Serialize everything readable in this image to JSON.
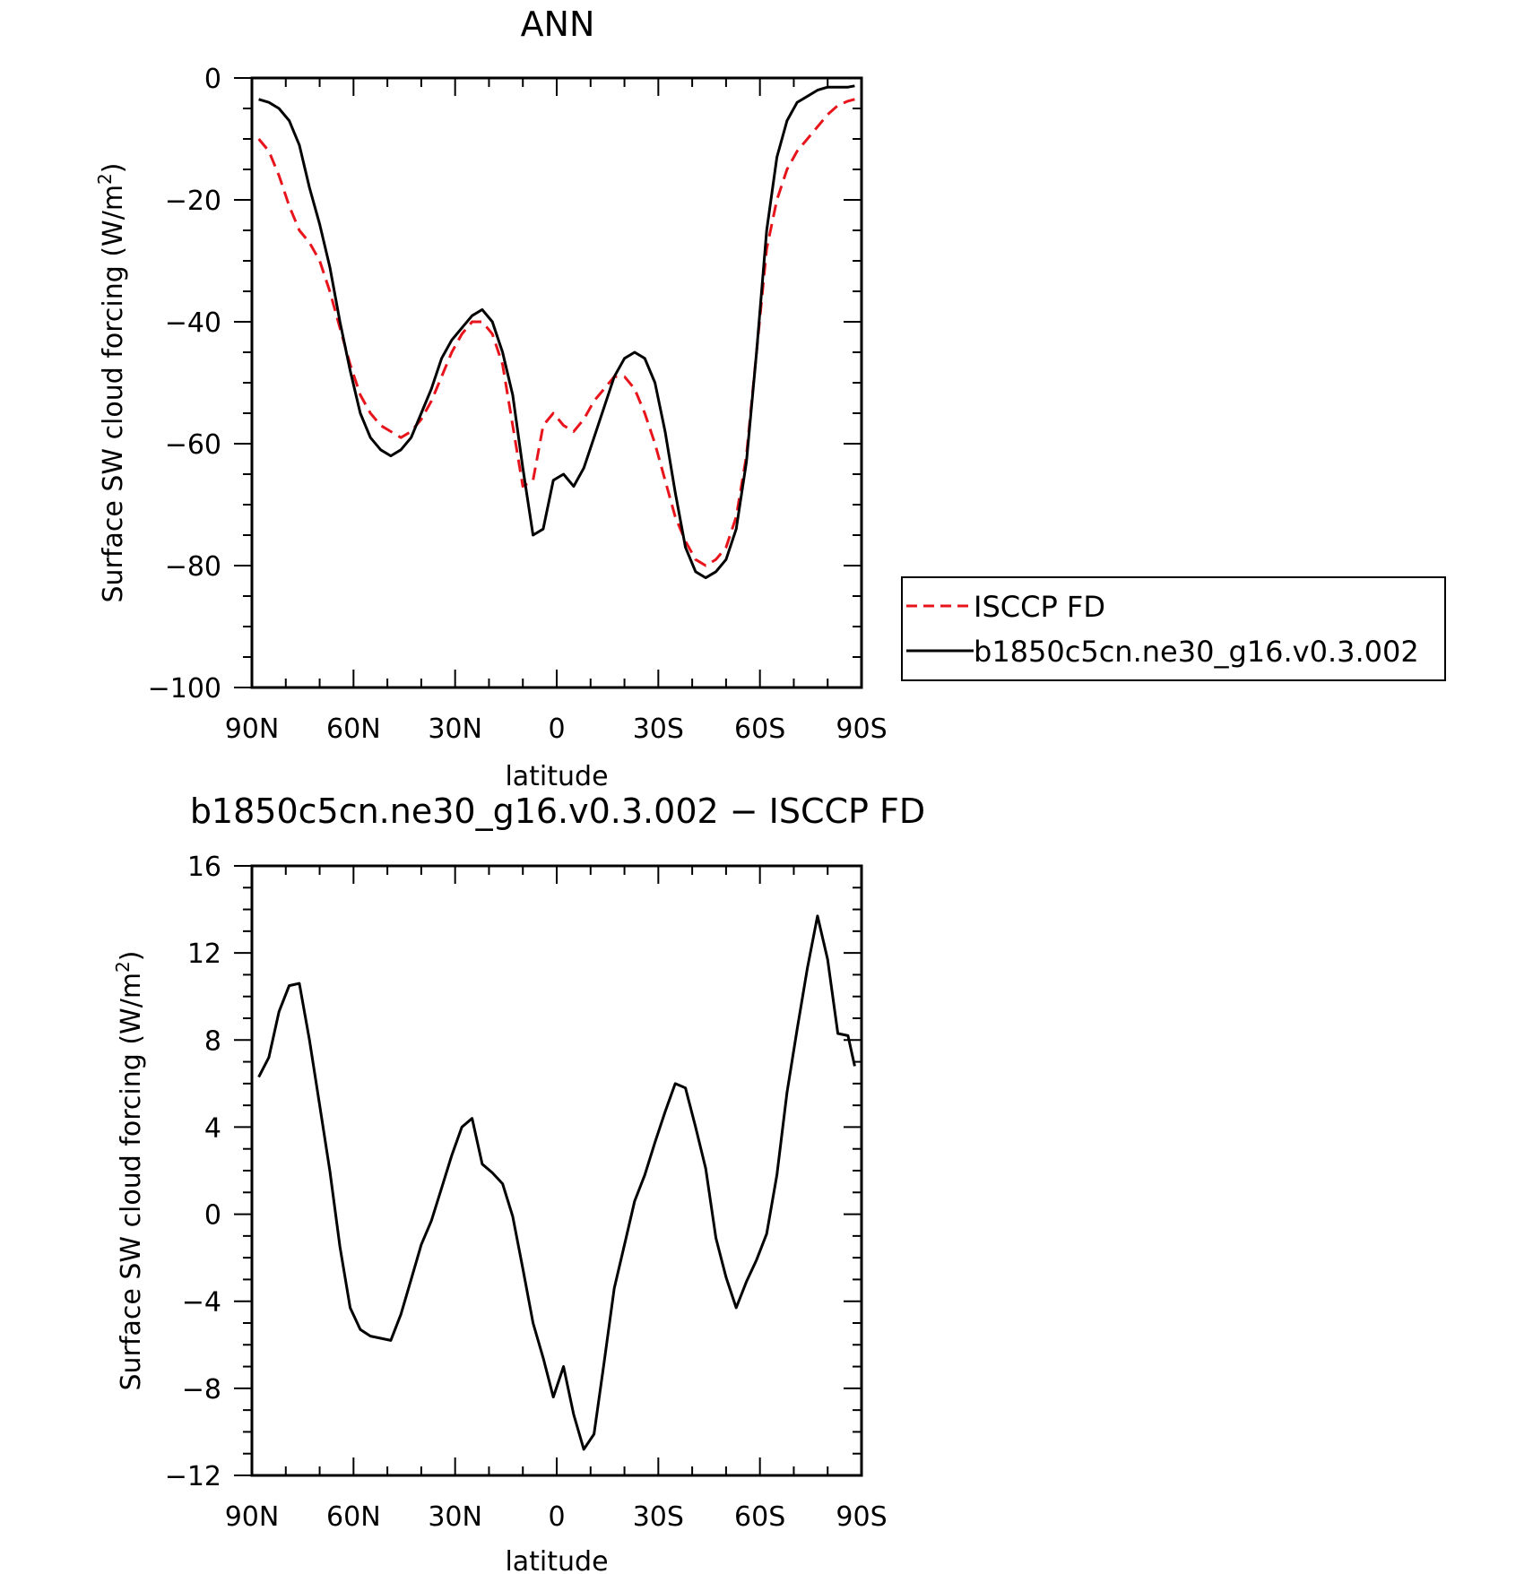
{
  "chart_data": [
    {
      "type": "line",
      "title": "ANN",
      "xlabel": "latitude",
      "ylabel": "Surface SW cloud forcing (W/m²)",
      "ylabel_parts": {
        "base": "Surface SW cloud forcing (W/m",
        "sup": "2",
        "end": ")"
      },
      "xlim": [
        90,
        -90
      ],
      "ylim": [
        -100,
        0
      ],
      "x_ticks": [
        90,
        60,
        30,
        0,
        -30,
        -60,
        -90
      ],
      "x_tick_labels": [
        "90N",
        "60N",
        "30N",
        "0",
        "30S",
        "60S",
        "90S"
      ],
      "y_ticks": [
        0,
        -20,
        -40,
        -60,
        -80,
        -100
      ],
      "y_tick_labels": [
        "0",
        "−20",
        "−40",
        "−60",
        "−80",
        "−100"
      ],
      "grid": false,
      "legend_position": "right",
      "series": [
        {
          "name": "ISCCP FD",
          "color": "#e8141b",
          "dash": "dashed",
          "x": [
            88,
            85,
            82,
            79,
            76,
            73,
            70,
            67,
            64,
            61,
            58,
            55,
            52,
            49,
            46,
            43,
            40,
            37,
            34,
            31,
            28,
            25,
            22,
            19,
            16,
            13,
            10,
            7,
            4,
            1,
            -2,
            -5,
            -8,
            -11,
            -14,
            -17,
            -20,
            -23,
            -26,
            -29,
            -32,
            -35,
            -38,
            -41,
            -44,
            -47,
            -50,
            -53,
            -56,
            -59,
            -62,
            -65,
            -68,
            -71,
            -74,
            -77,
            -80,
            -83,
            -86,
            -88
          ],
          "y": [
            -10,
            -12,
            -16,
            -21,
            -25,
            -27,
            -30,
            -35,
            -41,
            -47,
            -52,
            -55,
            -57,
            -58,
            -59,
            -58,
            -56,
            -53,
            -49,
            -45,
            -42,
            -40,
            -40,
            -42,
            -47,
            -57,
            -67,
            -66,
            -57,
            -55,
            -57,
            -58,
            -56,
            -53,
            -51,
            -49,
            -49,
            -51,
            -55,
            -60,
            -66,
            -72,
            -76,
            -79,
            -80,
            -79,
            -77,
            -72,
            -62,
            -45,
            -28,
            -20,
            -15,
            -12,
            -10,
            -8,
            -6,
            -4.5,
            -3.8,
            -3.5
          ]
        },
        {
          "name": "b1850c5cn.ne30_g16.v0.3.002",
          "color": "#000000",
          "dash": "solid",
          "x": [
            88,
            85,
            82,
            79,
            76,
            73,
            70,
            67,
            64,
            61,
            58,
            55,
            52,
            49,
            46,
            43,
            40,
            37,
            34,
            31,
            28,
            25,
            22,
            19,
            16,
            13,
            10,
            7,
            4,
            1,
            -2,
            -5,
            -8,
            -11,
            -14,
            -17,
            -20,
            -23,
            -26,
            -29,
            -32,
            -35,
            -38,
            -41,
            -44,
            -47,
            -50,
            -53,
            -56,
            -59,
            -62,
            -65,
            -68,
            -71,
            -74,
            -77,
            -80,
            -83,
            -86,
            -88
          ],
          "y": [
            -3.5,
            -4,
            -5,
            -7,
            -11,
            -18,
            -24,
            -31,
            -40,
            -48,
            -55,
            -59,
            -61,
            -62,
            -61,
            -59,
            -55,
            -51,
            -46,
            -43,
            -41,
            -39,
            -38,
            -40,
            -45,
            -52,
            -64,
            -75,
            -74,
            -66,
            -65,
            -67,
            -64,
            -59,
            -54,
            -49,
            -46,
            -45,
            -46,
            -50,
            -58,
            -68,
            -77,
            -81,
            -82,
            -81,
            -79,
            -74,
            -63,
            -45,
            -25,
            -13,
            -7,
            -4,
            -3,
            -2,
            -1.5,
            -1.5,
            -1.5,
            -1.3
          ]
        }
      ]
    },
    {
      "type": "line",
      "title": "b1850c5cn.ne30_g16.v0.3.002 − ISCCP FD",
      "xlabel": "latitude",
      "ylabel": "Surface SW cloud forcing (W/m²)",
      "ylabel_parts": {
        "base": "Surface SW cloud forcing (W/m",
        "sup": "2",
        "end": ")"
      },
      "xlim": [
        90,
        -90
      ],
      "ylim": [
        -12,
        16
      ],
      "x_ticks": [
        90,
        60,
        30,
        0,
        -30,
        -60,
        -90
      ],
      "x_tick_labels": [
        "90N",
        "60N",
        "30N",
        "0",
        "30S",
        "60S",
        "90S"
      ],
      "y_ticks": [
        16,
        12,
        8,
        4,
        0,
        -4,
        -8,
        -12
      ],
      "y_tick_labels": [
        "16",
        "12",
        "8",
        "4",
        "0",
        "−4",
        "−8",
        "−12"
      ],
      "grid": false,
      "series": [
        {
          "color": "#000000",
          "dash": "solid",
          "x": [
            88,
            85,
            82,
            79,
            76,
            73,
            70,
            67,
            64,
            61,
            58,
            55,
            52,
            49,
            46,
            43,
            40,
            37,
            34,
            31,
            28,
            25,
            22,
            19,
            16,
            13,
            10,
            7,
            4,
            1,
            -2,
            -5,
            -8,
            -11,
            -14,
            -17,
            -20,
            -23,
            -26,
            -29,
            -32,
            -35,
            -38,
            -41,
            -44,
            -47,
            -50,
            -53,
            -56,
            -59,
            -62,
            -65,
            -68,
            -71,
            -74,
            -77,
            -80,
            -83,
            -86,
            -88
          ],
          "y": [
            6.3,
            7.2,
            9.3,
            10.5,
            10.6,
            8,
            5,
            2,
            -1.5,
            -4.3,
            -5.3,
            -5.6,
            -5.7,
            -5.8,
            -4.6,
            -3,
            -1.4,
            -0.3,
            1.2,
            2.7,
            4,
            4.4,
            2.3,
            1.9,
            1.4,
            -0.1,
            -2.5,
            -5,
            -6.6,
            -8.4,
            -7,
            -9.2,
            -10.8,
            -10.1,
            -6.8,
            -3.4,
            -1.4,
            0.6,
            1.8,
            3.3,
            4.7,
            6,
            5.8,
            4,
            2.1,
            -1.1,
            -2.9,
            -4.3,
            -3.1,
            -2.1,
            -0.9,
            1.8,
            5.6,
            8.5,
            11.3,
            13.7,
            11.7,
            8.3,
            8.2,
            6.8
          ]
        }
      ]
    }
  ]
}
